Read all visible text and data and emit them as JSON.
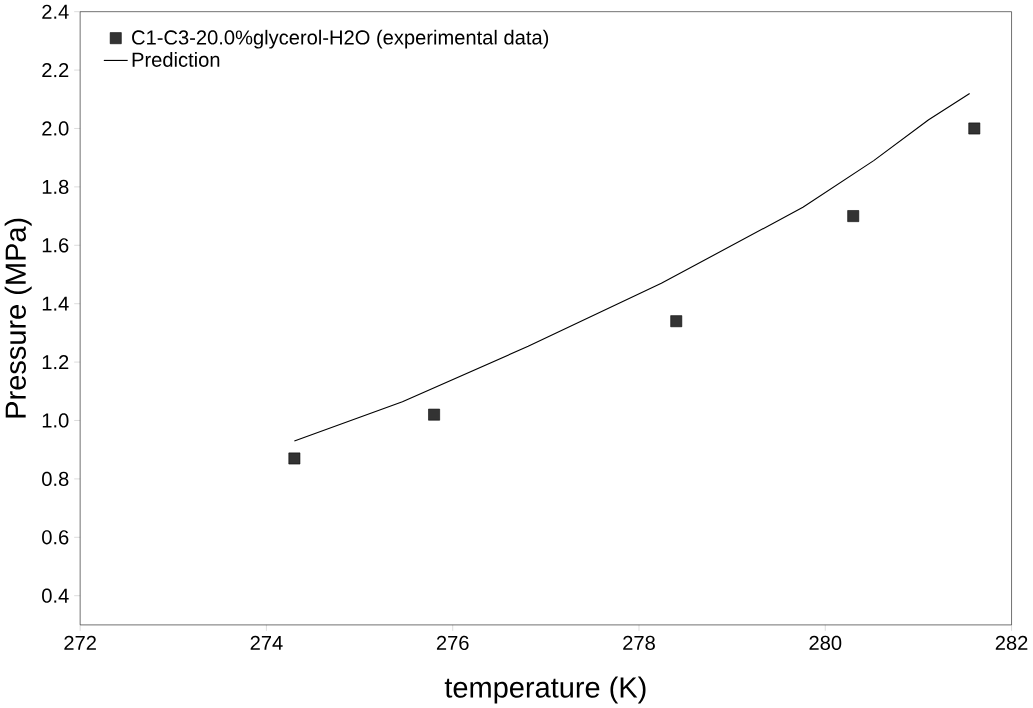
{
  "chart_data": {
    "type": "scatter",
    "xlabel": "temperature (K)",
    "ylabel": "Pressure (MPa)",
    "xlim": [
      272,
      282
    ],
    "xticks": [
      272,
      274,
      276,
      278,
      280,
      282
    ],
    "ylim": [
      0.3,
      2.4
    ],
    "yticks": [
      {
        "value": 0.4,
        "label": "0.4"
      },
      {
        "value": 0.6,
        "label": "0.6"
      },
      {
        "value": 0.8,
        "label": "0.8"
      },
      {
        "value": 1.0,
        "label": "1.0"
      },
      {
        "value": 1.2,
        "label": "1.2"
      },
      {
        "value": 1.4,
        "label": "1.4"
      },
      {
        "value": 1.6,
        "label": "1.6"
      },
      {
        "value": 1.8,
        "label": "1.8"
      },
      {
        "value": 2.0,
        "label": "2.0"
      },
      {
        "value": 2.2,
        "label": "2.2"
      },
      {
        "value": 2.4,
        "label": "2.4"
      }
    ],
    "legend": "top left",
    "series": [
      {
        "name": "C1-C3-20.0%glycerol-H2O (experimental data)",
        "marker": "square",
        "color": "#333333",
        "x": [
          274.3,
          275.8,
          278.4,
          280.3,
          281.6
        ],
        "values": [
          0.87,
          1.02,
          1.34,
          1.7,
          2.0
        ]
      },
      {
        "name": "Prediction",
        "type": "line",
        "marker": "none",
        "line_style": "solid",
        "color": "#000000",
        "x": [
          274.3,
          275.46,
          276.81,
          278.24,
          279.76,
          280.52,
          281.11,
          281.55
        ],
        "values": [
          0.93,
          1.064,
          1.254,
          1.47,
          1.73,
          1.89,
          2.03,
          2.12
        ]
      }
    ]
  }
}
